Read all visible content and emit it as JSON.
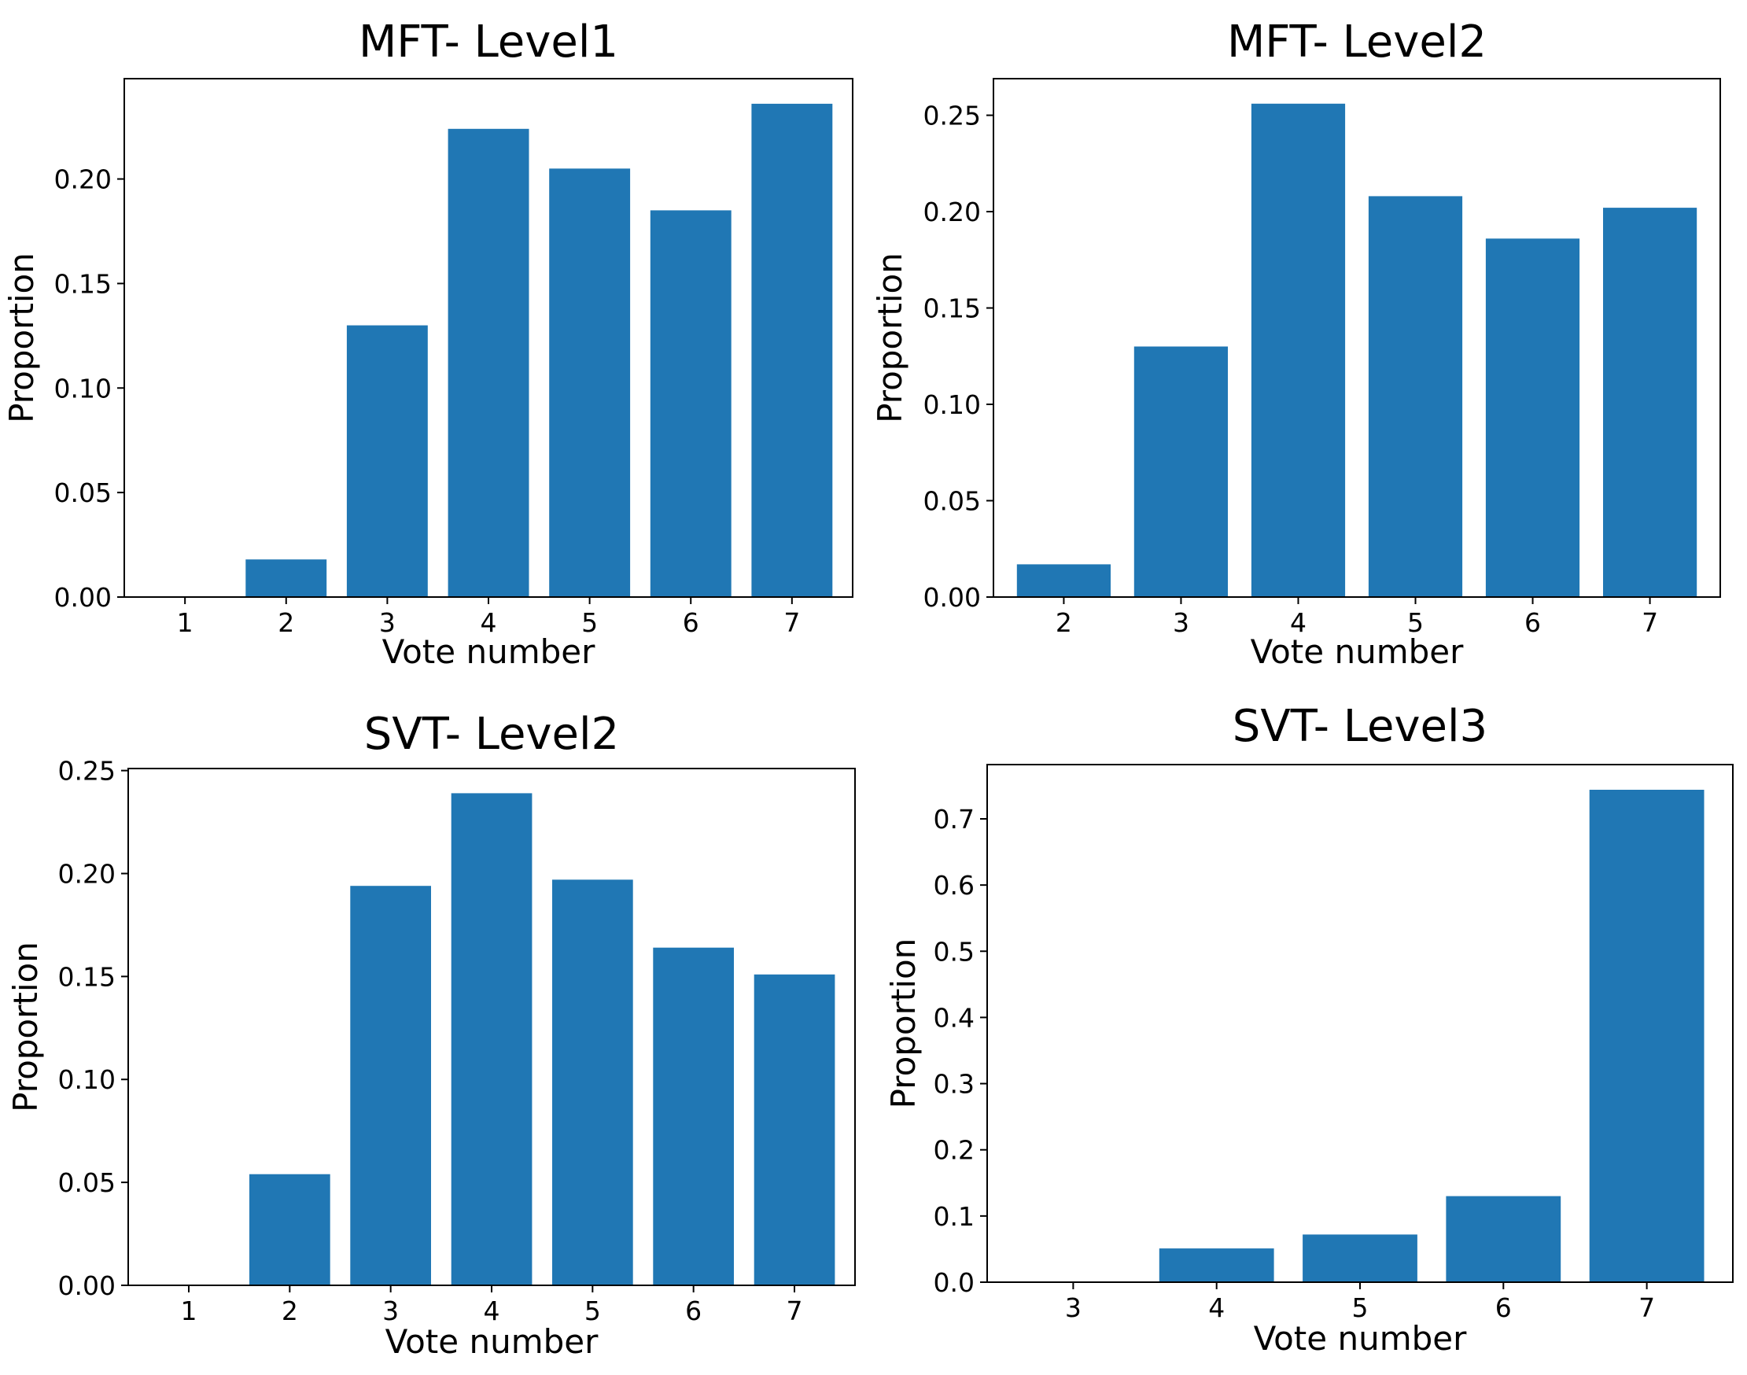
{
  "figure": {
    "bar_color": "#2077b4",
    "background": "#ffffff"
  },
  "chart_data": [
    {
      "type": "bar",
      "title": "MFT- Level1",
      "xlabel": "Vote number",
      "ylabel": "Proportion",
      "categories": [
        "1",
        "2",
        "3",
        "4",
        "5",
        "6",
        "7"
      ],
      "values": [
        0.0,
        0.018,
        0.13,
        0.224,
        0.205,
        0.185,
        0.236
      ],
      "ylim": [
        0,
        0.248
      ],
      "yticks": [
        "0.00",
        "0.05",
        "0.10",
        "0.15",
        "0.20"
      ],
      "ytick_values": [
        0,
        0.05,
        0.1,
        0.15,
        0.2
      ],
      "grid": false
    },
    {
      "type": "bar",
      "title": "MFT- Level2",
      "xlabel": "Vote number",
      "ylabel": "Proportion",
      "categories": [
        "2",
        "3",
        "4",
        "5",
        "6",
        "7"
      ],
      "values": [
        0.017,
        0.13,
        0.256,
        0.208,
        0.186,
        0.202
      ],
      "ylim": [
        0,
        0.269
      ],
      "yticks": [
        "0.00",
        "0.05",
        "0.10",
        "0.15",
        "0.20",
        "0.25"
      ],
      "ytick_values": [
        0,
        0.05,
        0.1,
        0.15,
        0.2,
        0.25
      ],
      "grid": false
    },
    {
      "type": "bar",
      "title": "SVT- Level2",
      "xlabel": "Vote number",
      "ylabel": "Proportion",
      "categories": [
        "1",
        "2",
        "3",
        "4",
        "5",
        "6",
        "7"
      ],
      "values": [
        0.0,
        0.054,
        0.194,
        0.239,
        0.197,
        0.164,
        0.151
      ],
      "ylim": [
        0,
        0.251
      ],
      "yticks": [
        "0.00",
        "0.05",
        "0.10",
        "0.15",
        "0.20",
        "0.25"
      ],
      "ytick_values": [
        0,
        0.05,
        0.1,
        0.15,
        0.2,
        0.25
      ],
      "grid": false
    },
    {
      "type": "bar",
      "title": "SVT- Level3",
      "xlabel": "Vote number",
      "ylabel": "Proportion",
      "categories": [
        "3",
        "4",
        "5",
        "6",
        "7"
      ],
      "values": [
        0.0,
        0.051,
        0.072,
        0.13,
        0.744
      ],
      "ylim": [
        0,
        0.782
      ],
      "yticks": [
        "0.0",
        "0.1",
        "0.2",
        "0.3",
        "0.4",
        "0.5",
        "0.6",
        "0.7"
      ],
      "ytick_values": [
        0,
        0.1,
        0.2,
        0.3,
        0.4,
        0.5,
        0.6,
        0.7
      ],
      "grid": false
    }
  ]
}
